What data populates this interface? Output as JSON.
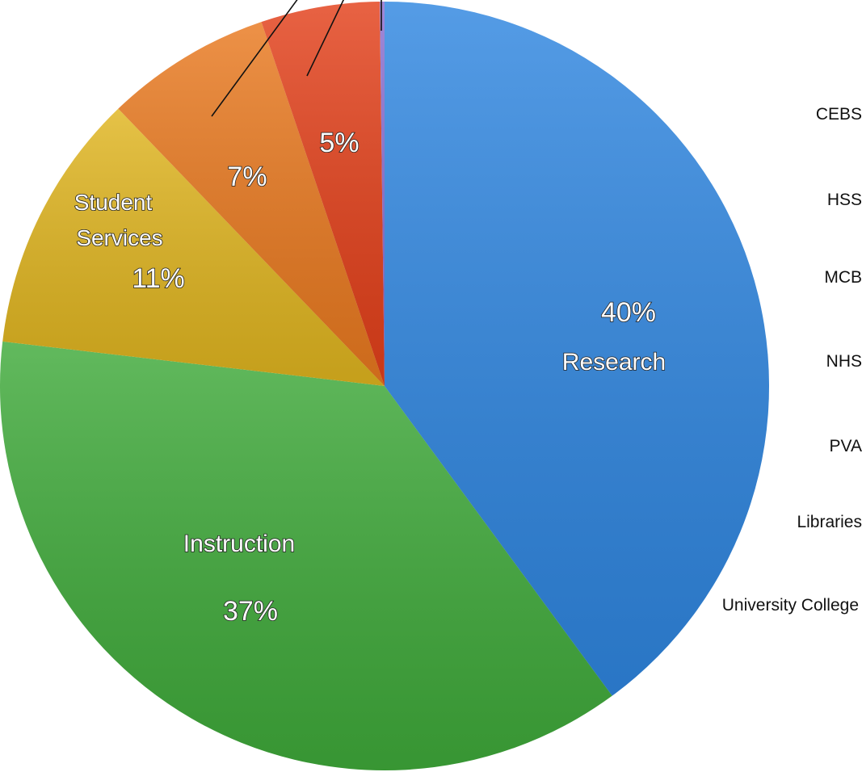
{
  "chart_data": {
    "type": "pie",
    "title": "",
    "start_angle_deg": 0,
    "direction": "clockwise",
    "slices": [
      {
        "label": "Research",
        "percent_label": "40%",
        "value": 40,
        "color": "#2f86e0"
      },
      {
        "label": "Instruction",
        "percent_label": "37%",
        "value": 37,
        "color": "#3faa3a"
      },
      {
        "label": "Student Services",
        "percent_label": "11%",
        "value": 11,
        "color": "#e0b51f"
      },
      {
        "label": "",
        "percent_label": "7%",
        "value": 7,
        "color": "#e9791f"
      },
      {
        "label": "",
        "percent_label": "5%",
        "value": 5,
        "color": "#e3401a"
      },
      {
        "label": "",
        "percent_label": "",
        "value": 0.2,
        "color": "#8a6fd0"
      }
    ],
    "side_labels": [
      "CEBS",
      "HSS",
      "MCB",
      "NHS",
      "PVA",
      "Libraries",
      "University College"
    ]
  }
}
